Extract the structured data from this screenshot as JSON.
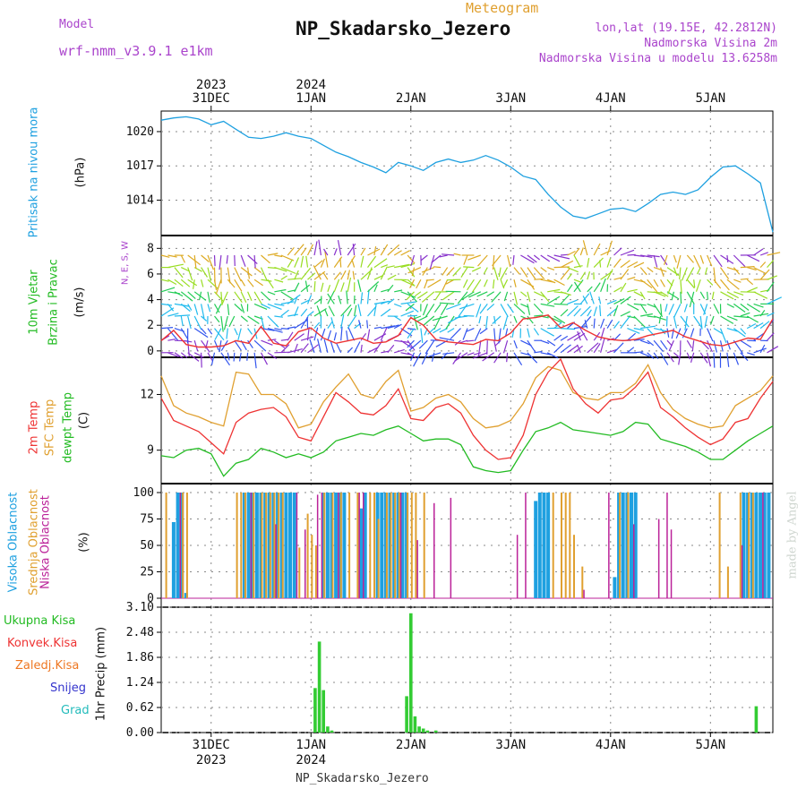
{
  "header": {
    "title": "NP_Skadarsko_Jezero",
    "subtitle": "Meteogram",
    "model_label": "Model",
    "model_name": "wrf-nmm_v3.9.1 e1km",
    "lonlat": "lon,lat (19.15E, 42.2812N)",
    "altitude": "Nadmorska Visina 2m",
    "model_altitude": "Nadmorska Visina u modelu 13.6258m",
    "bottom_title": "NP_Skadarsko_Jezero",
    "watermark": "made by Angel"
  },
  "colors": {
    "pressure": "#1ea0e0",
    "temp2m": "#ee3333",
    "sfc_temp": "#e0a030",
    "dewpt": "#22bb22",
    "wind_label": "#22bb22",
    "cloud_high": "#1ea0e0",
    "cloud_mid": "#e0a030",
    "cloud_low": "#bb2299",
    "precip": "#33cc33",
    "grid": "#888888"
  },
  "chart_data": [
    {
      "id": "pressure",
      "type": "line",
      "ylabel_lines": [
        "Pritisak na nivou mora",
        "(hPa)"
      ],
      "yticks": [
        1014,
        1017,
        1020
      ],
      "ylim": [
        1010.9,
        1021.8
      ],
      "x_hours": [
        0,
        3,
        6,
        9,
        12,
        15,
        18,
        21,
        24,
        27,
        30,
        33,
        36,
        39,
        42,
        45,
        48,
        51,
        54,
        57,
        60,
        63,
        66,
        69,
        72,
        75,
        78,
        81,
        84,
        87,
        90,
        93,
        96,
        99,
        102,
        105,
        108,
        111,
        114,
        117,
        120,
        123,
        126,
        129,
        132,
        135,
        138,
        141,
        144,
        147
      ],
      "series": [
        {
          "values": [
            1021.0,
            1021.2,
            1021.3,
            1021.1,
            1020.6,
            1020.9,
            1020.2,
            1019.5,
            1019.4,
            1019.6,
            1019.9,
            1019.6,
            1019.4,
            1018.8,
            1018.2,
            1017.8,
            1017.3,
            1016.9,
            1016.4,
            1017.3,
            1017.0,
            1016.6,
            1017.3,
            1017.6,
            1017.3,
            1017.5,
            1017.9,
            1017.5,
            1016.9,
            1016.1,
            1015.8,
            1014.5,
            1013.4,
            1012.6,
            1012.4,
            1012.8,
            1013.2,
            1013.3,
            1013.0,
            1013.7,
            1014.5,
            1014.7,
            1014.5,
            1014.9,
            1016.0,
            1016.9,
            1017.0,
            1016.3,
            1015.5,
            1011.2
          ]
        }
      ]
    },
    {
      "id": "wind",
      "type": "line",
      "ylabel_lines": [
        "10m Vjetar",
        "Brzina i Pravac",
        "(m/s)"
      ],
      "compass": "N, E, S, W",
      "yticks": [
        0,
        2,
        4,
        6,
        8
      ],
      "ylim": [
        -0.5,
        9
      ],
      "x_hours": [
        0,
        3,
        6,
        9,
        12,
        15,
        18,
        21,
        24,
        27,
        30,
        33,
        36,
        39,
        42,
        45,
        48,
        51,
        54,
        57,
        60,
        63,
        66,
        69,
        72,
        75,
        78,
        81,
        84,
        87,
        90,
        93,
        96,
        99,
        102,
        105,
        108,
        111,
        114,
        117,
        120,
        123,
        126,
        129,
        132,
        135,
        138,
        141,
        144,
        147
      ],
      "series": [
        {
          "values": [
            0.8,
            1.6,
            0.5,
            0.3,
            0.3,
            0.4,
            0.8,
            0.6,
            1.9,
            0.6,
            0.4,
            1.5,
            1.8,
            1.0,
            0.6,
            0.8,
            1.0,
            0.6,
            0.7,
            1.2,
            2.6,
            2.0,
            0.9,
            0.7,
            0.6,
            0.5,
            0.9,
            0.8,
            1.4,
            2.5,
            2.6,
            2.8,
            1.8,
            2.2,
            1.6,
            1.1,
            0.9,
            0.8,
            0.9,
            1.2,
            1.4,
            1.6,
            1.1,
            0.8,
            0.5,
            0.4,
            0.7,
            1.0,
            0.9,
            2.5
          ]
        }
      ]
    },
    {
      "id": "temperature",
      "type": "line",
      "ylabel_lines": [
        "2m Temp",
        "SFC Temp",
        "dewpt Temp",
        "(C)"
      ],
      "yticks": [
        9,
        12
      ],
      "ylim": [
        7.2,
        14.0
      ],
      "x_hours": [
        0,
        3,
        6,
        9,
        12,
        15,
        18,
        21,
        24,
        27,
        30,
        33,
        36,
        39,
        42,
        45,
        48,
        51,
        54,
        57,
        60,
        63,
        66,
        69,
        72,
        75,
        78,
        81,
        84,
        87,
        90,
        93,
        96,
        99,
        102,
        105,
        108,
        111,
        114,
        117,
        120,
        123,
        126,
        129,
        132,
        135,
        138,
        141,
        144,
        147
      ],
      "series": [
        {
          "name": "2m Temp",
          "values": [
            11.8,
            10.6,
            10.3,
            10.0,
            9.4,
            8.8,
            10.5,
            11.0,
            11.2,
            11.3,
            10.8,
            9.7,
            9.5,
            10.8,
            12.1,
            11.6,
            11.0,
            10.9,
            11.4,
            12.3,
            10.7,
            10.6,
            11.3,
            11.5,
            11.0,
            9.8,
            9.0,
            8.5,
            8.6,
            9.8,
            12.0,
            13.2,
            13.9,
            12.3,
            11.5,
            11.0,
            11.7,
            11.8,
            12.4,
            13.2,
            11.3,
            10.8,
            10.2,
            9.7,
            9.3,
            9.6,
            10.5,
            10.7,
            11.8,
            12.7
          ]
        },
        {
          "name": "SFC Temp",
          "values": [
            13.0,
            11.4,
            11.0,
            10.8,
            10.5,
            10.3,
            13.2,
            13.1,
            12.0,
            12.0,
            11.5,
            10.2,
            10.4,
            11.6,
            12.4,
            13.1,
            12.0,
            11.8,
            12.7,
            13.3,
            11.1,
            11.3,
            11.8,
            12.0,
            11.6,
            10.7,
            10.2,
            10.3,
            10.6,
            11.5,
            12.9,
            13.5,
            13.3,
            12.1,
            11.8,
            11.7,
            12.1,
            12.1,
            12.6,
            13.6,
            12.1,
            11.2,
            10.7,
            10.4,
            10.2,
            10.3,
            11.4,
            11.8,
            12.2,
            13.0
          ]
        },
        {
          "name": "dewpt Temp",
          "values": [
            8.7,
            8.6,
            9.0,
            9.1,
            8.8,
            7.6,
            8.3,
            8.5,
            9.1,
            8.9,
            8.6,
            8.8,
            8.6,
            8.9,
            9.5,
            9.7,
            9.9,
            9.8,
            10.1,
            10.3,
            9.9,
            9.5,
            9.6,
            9.6,
            9.3,
            8.1,
            7.9,
            7.8,
            7.9,
            9.0,
            10.0,
            10.2,
            10.5,
            10.1,
            10.0,
            9.9,
            9.8,
            10.0,
            10.5,
            10.4,
            9.6,
            9.4,
            9.2,
            8.9,
            8.5,
            8.5,
            9.0,
            9.5,
            9.9,
            10.3
          ]
        }
      ]
    },
    {
      "id": "clouds",
      "type": "bar",
      "ylabel_lines": [
        "Visoka Oblacnost",
        "Srednja Oblacnost",
        "Niska Oblacnost",
        "(%)"
      ],
      "yticks": [
        0,
        25,
        50,
        75,
        100
      ],
      "ylim": [
        0,
        100
      ],
      "series": [
        {
          "name": "Visoka Oblacnost",
          "x_hours": [
            3,
            4,
            5,
            6,
            20,
            21,
            22,
            23,
            24,
            25,
            26,
            27,
            28,
            29,
            30,
            31,
            32,
            39,
            40,
            41,
            42,
            43,
            44,
            48,
            49,
            52,
            53,
            54,
            55,
            56,
            57,
            58,
            59,
            90,
            91,
            92,
            93,
            109,
            110,
            111,
            112,
            113,
            114,
            140,
            141,
            142,
            143,
            144,
            145,
            146
          ],
          "values": [
            72,
            100,
            100,
            5,
            100,
            100,
            100,
            100,
            100,
            100,
            100,
            100,
            100,
            100,
            100,
            100,
            100,
            100,
            100,
            100,
            100,
            100,
            100,
            85,
            100,
            100,
            100,
            100,
            100,
            100,
            100,
            100,
            100,
            92,
            100,
            100,
            100,
            20,
            100,
            100,
            100,
            100,
            100,
            100,
            100,
            100,
            100,
            100,
            100,
            100
          ]
        },
        {
          "name": "Srednja Oblacnost",
          "x_hours": [
            1,
            5,
            6,
            18,
            19,
            20,
            22,
            24,
            25,
            26,
            27,
            28,
            29,
            33,
            35,
            36,
            37,
            39,
            41,
            43,
            45,
            47,
            50,
            51,
            52,
            54,
            55,
            56,
            57,
            59,
            60,
            61,
            63,
            94,
            96,
            97,
            98,
            99,
            101,
            110,
            112,
            134,
            136,
            139,
            141,
            142
          ],
          "values": [
            100,
            100,
            100,
            100,
            100,
            100,
            100,
            100,
            100,
            100,
            100,
            100,
            100,
            48,
            80,
            60,
            50,
            100,
            100,
            100,
            100,
            100,
            100,
            100,
            75,
            100,
            100,
            100,
            100,
            100,
            100,
            100,
            100,
            100,
            100,
            100,
            100,
            60,
            30,
            100,
            100,
            100,
            30,
            100,
            100,
            100
          ]
        },
        {
          "name": "Niska Oblacnost",
          "x_hours": [
            4,
            21,
            27,
            32,
            34,
            37,
            38,
            42,
            47,
            48,
            57,
            61,
            65,
            69,
            85,
            87,
            101,
            107,
            113,
            119,
            121,
            122,
            139,
            144
          ],
          "values": [
            100,
            100,
            70,
            100,
            65,
            98,
            100,
            100,
            100,
            100,
            100,
            55,
            90,
            95,
            60,
            100,
            8,
            100,
            70,
            75,
            100,
            65,
            50,
            100
          ]
        }
      ]
    },
    {
      "id": "precip",
      "type": "bar",
      "ylabel_lines": [
        "1hr Precip (mm)"
      ],
      "legend": [
        "Ukupna Kisa",
        "Konvek.Kisa",
        "Zaledj.Kisa",
        "Snijeg",
        "Grad"
      ],
      "legend_colors": [
        "#22bb22",
        "#ee3333",
        "#ee7722",
        "#3333cc",
        "#22bbbb"
      ],
      "yticks": [
        0,
        0.62,
        1.24,
        1.86,
        2.48,
        3.1
      ],
      "ylim": [
        0,
        3.1
      ],
      "series": [
        {
          "name": "Ukupna Kisa",
          "x_hours": [
            37,
            38,
            39,
            40,
            41,
            59,
            60,
            61,
            62,
            63,
            64,
            66,
            143
          ],
          "values": [
            1.1,
            2.25,
            1.05,
            0.15,
            0.05,
            0.9,
            2.95,
            0.4,
            0.15,
            0.1,
            0.05,
            0.05,
            0.65
          ]
        }
      ]
    }
  ],
  "xaxis": {
    "ticks_top": [
      {
        "hour": 12,
        "year": "2023",
        "label": "31DEC"
      },
      {
        "hour": 36,
        "year": "2024",
        "label": "1JAN"
      },
      {
        "hour": 60,
        "label": "2JAN"
      },
      {
        "hour": 84,
        "label": "3JAN"
      },
      {
        "hour": 108,
        "label": "4JAN"
      },
      {
        "hour": 132,
        "label": "5JAN"
      }
    ],
    "ticks_bottom": [
      {
        "hour": 12,
        "label": "31DEC",
        "year": "2023"
      },
      {
        "hour": 36,
        "label": "1JAN",
        "year": "2024"
      },
      {
        "hour": 60,
        "label": "2JAN"
      },
      {
        "hour": 84,
        "label": "3JAN"
      },
      {
        "hour": 108,
        "label": "4JAN"
      },
      {
        "hour": 132,
        "label": "5JAN"
      }
    ],
    "total_hours": 147
  }
}
